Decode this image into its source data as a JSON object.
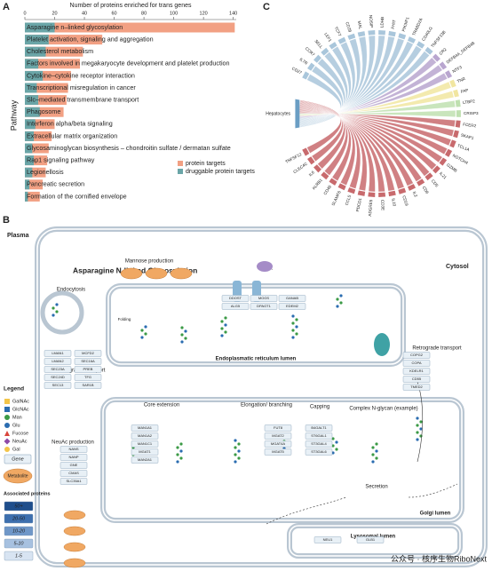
{
  "chart_data": {
    "type": "barh",
    "title": "Number of proteins enriched for trans genes",
    "y_label": "Pathway",
    "categories": [
      "Asparagine n–linked glycosylation",
      "Platelet activation, signaling and aggregation",
      "Cholesterol metabolism",
      "Factors involved in megakaryocyte development and platelet production",
      "Cytokine–cytokine receptor interaction",
      "Transcriptional misregulation in cancer",
      "Slc–mediated transmembrane transport",
      "Phagosome",
      "Interferon alpha/beta signaling",
      "Extracellular matrix organization",
      "Glycosaminoglycan biosynthesis – chondroitin sulfate / dermatan sulfate",
      "Rap1 signaling pathway",
      "Legionellosis",
      "Pancreatic secretion",
      "Formation of the cornified envelope"
    ],
    "series": [
      {
        "name": "protein targets",
        "color": "#f2a083",
        "values": [
          141,
          52,
          39,
          37,
          31,
          29,
          28,
          26,
          20,
          18,
          16,
          15,
          14,
          12,
          10
        ]
      },
      {
        "name": "druggable protein targets",
        "color": "#6aa5a7",
        "values": [
          20,
          16,
          14,
          9,
          12,
          8,
          9,
          10,
          7,
          6,
          5,
          6,
          5,
          3,
          2
        ]
      }
    ],
    "xlim": [
      0,
      142
    ],
    "xticks": [
      0,
      20,
      40,
      60,
      80,
      100,
      120,
      140
    ]
  },
  "panel_labels": [
    "A",
    "B",
    "C"
  ],
  "panel_c": {
    "source": "Hepatocytes",
    "labels": [
      "CD27",
      "IL7R",
      "CCR7",
      "SELL",
      "LEF1",
      "TCF7",
      "CD28",
      "MAL",
      "NOSIP",
      "LDHB",
      "FHIT",
      "PIK3IP1",
      "TRABD2A",
      "CD40LG",
      "TNFSF13B",
      "CR2",
      "DEFB4A_DEFB4B",
      "NTF3",
      "TNR",
      "FAP",
      "LTBP2",
      "CRISP3",
      "FCER2",
      "SKAP1",
      "TCL1A",
      "NOTCH4",
      "GZMB",
      "IL21",
      "CD5",
      "CD6",
      "IL2",
      "CD19",
      "IL10",
      "CD3E",
      "ADGRE5",
      "PDCD1",
      "CCL5",
      "SLAMF6",
      "CD48",
      "KLRB1",
      "IL6",
      "CLEC4C",
      "TNFSF12"
    ]
  },
  "panel_b": {
    "plasma": "Plasma",
    "title": "Asparagine N-linked Glycosylation",
    "cytosol": "Cytosol",
    "sections": [
      "Endocytosis",
      "Mannose production",
      "Anterograde transport",
      "Endoplasmatic reticulum lumen",
      "Retrograde transport",
      "Core extension",
      "Elongation/ branching",
      "Capping",
      "Complex N-glycan (example)",
      "Golgi lumen",
      "Secretion",
      "NeuAc production",
      "Lysosomal lumen",
      "mRNA",
      "Folding"
    ],
    "gene_groups": [
      [
        "LMAN1",
        "MCFD2",
        "LMAN2",
        "SEC16A",
        "SEC23A",
        "PREB",
        "SEC24D",
        "TFG",
        "SEC13",
        "SAR1B"
      ],
      [
        "DDOST",
        "MOGS",
        "GANAB",
        "ALG5",
        "DPAGT1",
        "EDEM2"
      ],
      [
        "MAN1A1",
        "MAN1A2",
        "MAN1C1",
        "MGAT1",
        "MAN2A1"
      ],
      [
        "FUT8",
        "MGAT2",
        "MGAT4A",
        "MGAT5"
      ],
      [
        "B4GALT1",
        "ST6GAL1",
        "ST3GAL4",
        "ST3GAL6"
      ],
      [
        "NANS",
        "NANP",
        "GNE",
        "CMAS",
        "SLC35A1"
      ],
      [
        "COPG2",
        "COPA",
        "KDELR1",
        "CD55",
        "TMED2"
      ],
      [
        "NEU1",
        "GLB1"
      ]
    ],
    "legend": {
      "title": "Legend",
      "sugars": [
        "GalNAc",
        "GlcNAc",
        "Man",
        "Glu",
        "Fucose",
        "NeuAc",
        "Gal"
      ],
      "gene": "Gene",
      "metabolite": "Metabolite",
      "assoc_title": "Associated proteins",
      "levels": [
        "50+",
        "20-50",
        "10-20",
        "5-10",
        "1-5"
      ]
    },
    "watermark": "公众号 · 核序生物RiboNext"
  }
}
